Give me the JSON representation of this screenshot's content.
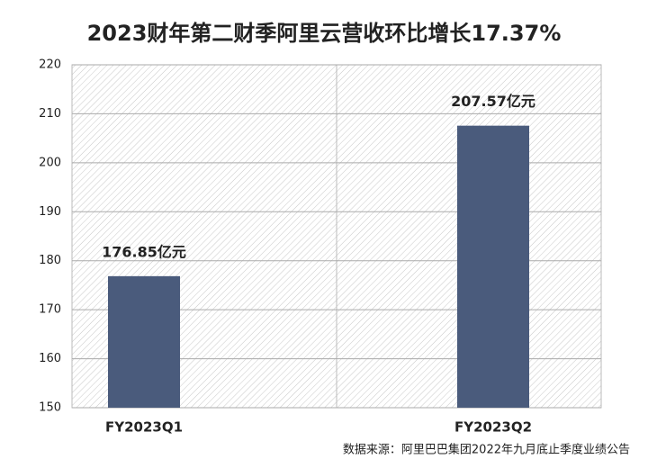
{
  "chart_data": {
    "type": "bar",
    "title": "2023财年第二财季阿里云营收环比增长17.37%",
    "categories": [
      "FY2023Q1",
      "FY2023Q2"
    ],
    "values": [
      176.85,
      207.57
    ],
    "value_labels": [
      "176.85亿元",
      "207.57亿元"
    ],
    "color": "#4a5b7c",
    "ylim": [
      150,
      220
    ],
    "yticks": [
      150,
      160,
      170,
      180,
      190,
      200,
      210,
      220
    ],
    "grid": true,
    "source": "数据来源：阿里巴巴集团2022年九月底止季度业绩公告"
  }
}
